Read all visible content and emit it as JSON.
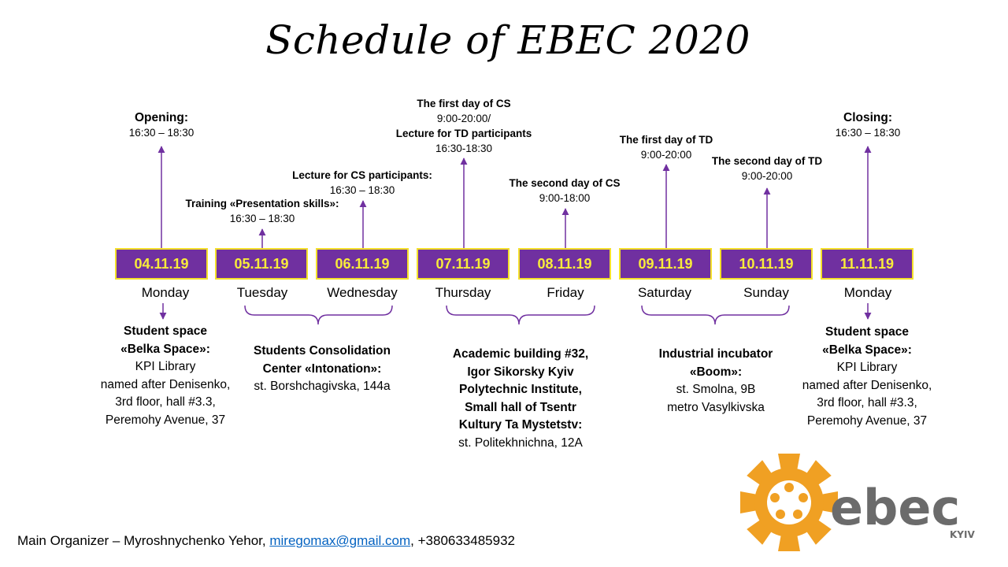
{
  "title": "Schedule of EBEC 2020",
  "days": [
    {
      "date": "04.11.19",
      "weekday": "Monday"
    },
    {
      "date": "05.11.19",
      "weekday": "Tuesday"
    },
    {
      "date": "06.11.19",
      "weekday": "Wednesday"
    },
    {
      "date": "07.11.19",
      "weekday": "Thursday"
    },
    {
      "date": "08.11.19",
      "weekday": "Friday"
    },
    {
      "date": "09.11.19",
      "weekday": "Saturday"
    },
    {
      "date": "10.11.19",
      "weekday": "Sunday"
    },
    {
      "date": "11.11.19",
      "weekday": "Monday"
    }
  ],
  "events": {
    "opening": {
      "title": "Opening:",
      "time": "16:30 – 18:30"
    },
    "training": {
      "title": "Training «Presentation skills»:",
      "time": "16:30 – 18:30"
    },
    "lecture_cs": {
      "title": "Lecture for CS participants:",
      "time": "16:30 – 18:30"
    },
    "cs_day1": {
      "title": "The first day of CS",
      "time": "9:00-20:00/",
      "title2": "Lecture for TD participants",
      "time2": "16:30-18:30"
    },
    "cs_day2": {
      "title": "The second day of CS",
      "time": "9:00-18:00"
    },
    "td_day1": {
      "title": "The first day of TD",
      "time": "9:00-20:00"
    },
    "td_day2": {
      "title": "The second day of TD",
      "time": "9:00-20:00"
    },
    "closing": {
      "title": "Closing:",
      "time": "16:30 – 18:30"
    }
  },
  "venues": {
    "belka_start": {
      "title1": "Student space",
      "title2": "«Belka Space»:",
      "line1": "KPI Library",
      "line2": "named after Denisenko,",
      "line3": "3rd floor, hall #3.3,",
      "line4": "Peremohy Avenue, 37"
    },
    "intonation": {
      "title1": "Students Consolidation",
      "title2": "Center «Intonation»:",
      "line1": "st. Borshchagivska, 144a"
    },
    "academic": {
      "title1": "Academic building #32,",
      "title2": "Igor Sikorsky Kyiv",
      "title3": "Polytechnic Institute,",
      "title4": "Small hall of Tsentr",
      "title5": "Kultury Ta Mystetstv:",
      "line1": "st. Politekhnichna, 12A"
    },
    "boom": {
      "title1": "Industrial incubator",
      "title2": "«Boom»:",
      "line1": "st. Smolna, 9B",
      "line2": "metro Vasylkivska"
    },
    "belka_end": {
      "title1": "Student space",
      "title2": "«Belka Space»:",
      "line1": "KPI Library",
      "line2": "named after Denisenko,",
      "line3": "3rd floor, hall #3.3,",
      "line4": "Peremohy Avenue, 37"
    }
  },
  "footer": {
    "prefix": "Main Organizer – Myroshnychenko Yehor, ",
    "email": "miregomax@gmail.com",
    "suffix": ", +380633485932"
  },
  "logo": {
    "word": "ebec",
    "sub": "KYIV"
  },
  "colors": {
    "purple": "#7030a0",
    "yellow": "#f8ec3a",
    "orange": "#f0a023",
    "gray": "#6b6b6b",
    "link": "#0563c1"
  }
}
